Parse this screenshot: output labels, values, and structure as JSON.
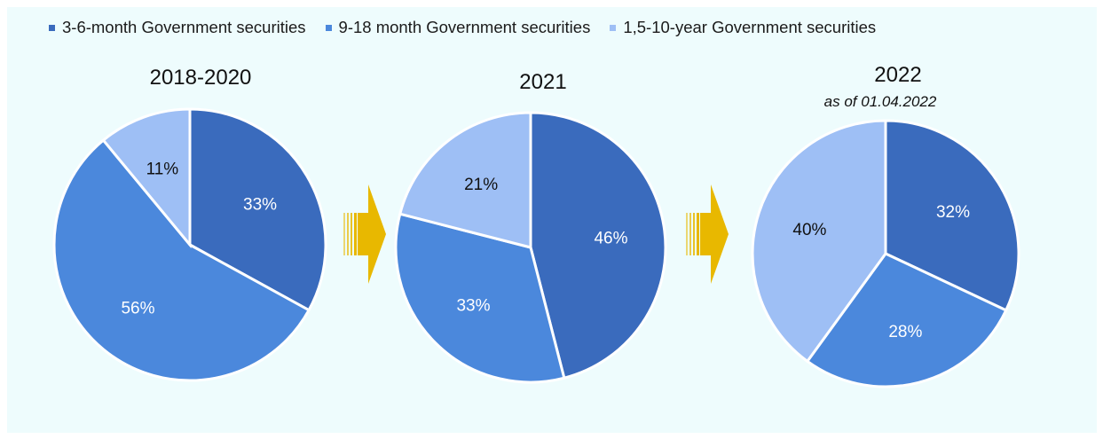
{
  "colors": {
    "series": [
      "#3a6bbd",
      "#4b88dc",
      "#9ebff5"
    ],
    "arrow": "#e8b800",
    "slice_border": "#ffffff"
  },
  "legend": [
    {
      "label": "3-6-month Government securities"
    },
    {
      "label": "9-18 month Government securities"
    },
    {
      "label": "1,5-10-year Government securities"
    }
  ],
  "chart_data": [
    {
      "type": "pie",
      "title": "2018-2020",
      "subtitle": "",
      "categories": [
        "3-6-month Government securities",
        "9-18 month Government securities",
        "1,5-10-year Government securities"
      ],
      "values": [
        33,
        56,
        11
      ],
      "labels": [
        "33%",
        "56%",
        "11%"
      ]
    },
    {
      "type": "pie",
      "title": "2021",
      "subtitle": "",
      "categories": [
        "3-6-month Government securities",
        "9-18 month Government securities",
        "1,5-10-year Government securities"
      ],
      "values": [
        46,
        33,
        21
      ],
      "labels": [
        "46%",
        "33%",
        "21%"
      ]
    },
    {
      "type": "pie",
      "title": "2022",
      "subtitle": "as of 01.04.2022",
      "categories": [
        "3-6-month Government securities",
        "9-18 month Government securities",
        "1,5-10-year Government securities"
      ],
      "values": [
        32,
        28,
        40
      ],
      "labels": [
        "32%",
        "28%",
        "40%"
      ]
    }
  ]
}
